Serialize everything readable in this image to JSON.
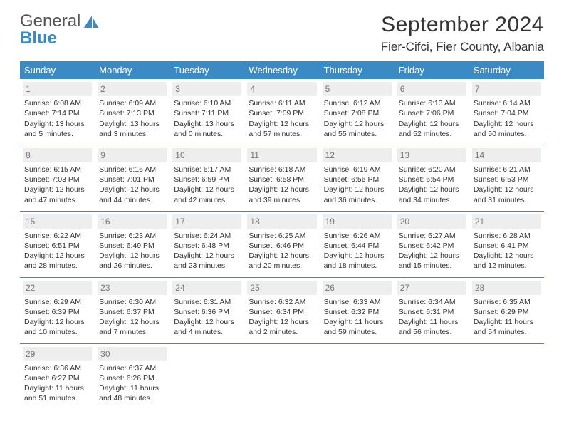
{
  "logo": {
    "word1": "General",
    "word2": "Blue"
  },
  "title": "September 2024",
  "location": "Fier-Cifci, Fier County, Albania",
  "day_names": [
    "Sunday",
    "Monday",
    "Tuesday",
    "Wednesday",
    "Thursday",
    "Friday",
    "Saturday"
  ],
  "header_bg": "#3b8ac4",
  "weeks": [
    [
      {
        "n": "1",
        "sr": "6:08 AM",
        "ss": "7:14 PM",
        "dl": "13 hours and 5 minutes."
      },
      {
        "n": "2",
        "sr": "6:09 AM",
        "ss": "7:13 PM",
        "dl": "13 hours and 3 minutes."
      },
      {
        "n": "3",
        "sr": "6:10 AM",
        "ss": "7:11 PM",
        "dl": "13 hours and 0 minutes."
      },
      {
        "n": "4",
        "sr": "6:11 AM",
        "ss": "7:09 PM",
        "dl": "12 hours and 57 minutes."
      },
      {
        "n": "5",
        "sr": "6:12 AM",
        "ss": "7:08 PM",
        "dl": "12 hours and 55 minutes."
      },
      {
        "n": "6",
        "sr": "6:13 AM",
        "ss": "7:06 PM",
        "dl": "12 hours and 52 minutes."
      },
      {
        "n": "7",
        "sr": "6:14 AM",
        "ss": "7:04 PM",
        "dl": "12 hours and 50 minutes."
      }
    ],
    [
      {
        "n": "8",
        "sr": "6:15 AM",
        "ss": "7:03 PM",
        "dl": "12 hours and 47 minutes."
      },
      {
        "n": "9",
        "sr": "6:16 AM",
        "ss": "7:01 PM",
        "dl": "12 hours and 44 minutes."
      },
      {
        "n": "10",
        "sr": "6:17 AM",
        "ss": "6:59 PM",
        "dl": "12 hours and 42 minutes."
      },
      {
        "n": "11",
        "sr": "6:18 AM",
        "ss": "6:58 PM",
        "dl": "12 hours and 39 minutes."
      },
      {
        "n": "12",
        "sr": "6:19 AM",
        "ss": "6:56 PM",
        "dl": "12 hours and 36 minutes."
      },
      {
        "n": "13",
        "sr": "6:20 AM",
        "ss": "6:54 PM",
        "dl": "12 hours and 34 minutes."
      },
      {
        "n": "14",
        "sr": "6:21 AM",
        "ss": "6:53 PM",
        "dl": "12 hours and 31 minutes."
      }
    ],
    [
      {
        "n": "15",
        "sr": "6:22 AM",
        "ss": "6:51 PM",
        "dl": "12 hours and 28 minutes."
      },
      {
        "n": "16",
        "sr": "6:23 AM",
        "ss": "6:49 PM",
        "dl": "12 hours and 26 minutes."
      },
      {
        "n": "17",
        "sr": "6:24 AM",
        "ss": "6:48 PM",
        "dl": "12 hours and 23 minutes."
      },
      {
        "n": "18",
        "sr": "6:25 AM",
        "ss": "6:46 PM",
        "dl": "12 hours and 20 minutes."
      },
      {
        "n": "19",
        "sr": "6:26 AM",
        "ss": "6:44 PM",
        "dl": "12 hours and 18 minutes."
      },
      {
        "n": "20",
        "sr": "6:27 AM",
        "ss": "6:42 PM",
        "dl": "12 hours and 15 minutes."
      },
      {
        "n": "21",
        "sr": "6:28 AM",
        "ss": "6:41 PM",
        "dl": "12 hours and 12 minutes."
      }
    ],
    [
      {
        "n": "22",
        "sr": "6:29 AM",
        "ss": "6:39 PM",
        "dl": "12 hours and 10 minutes."
      },
      {
        "n": "23",
        "sr": "6:30 AM",
        "ss": "6:37 PM",
        "dl": "12 hours and 7 minutes."
      },
      {
        "n": "24",
        "sr": "6:31 AM",
        "ss": "6:36 PM",
        "dl": "12 hours and 4 minutes."
      },
      {
        "n": "25",
        "sr": "6:32 AM",
        "ss": "6:34 PM",
        "dl": "12 hours and 2 minutes."
      },
      {
        "n": "26",
        "sr": "6:33 AM",
        "ss": "6:32 PM",
        "dl": "11 hours and 59 minutes."
      },
      {
        "n": "27",
        "sr": "6:34 AM",
        "ss": "6:31 PM",
        "dl": "11 hours and 56 minutes."
      },
      {
        "n": "28",
        "sr": "6:35 AM",
        "ss": "6:29 PM",
        "dl": "11 hours and 54 minutes."
      }
    ],
    [
      {
        "n": "29",
        "sr": "6:36 AM",
        "ss": "6:27 PM",
        "dl": "11 hours and 51 minutes."
      },
      {
        "n": "30",
        "sr": "6:37 AM",
        "ss": "6:26 PM",
        "dl": "11 hours and 48 minutes."
      },
      null,
      null,
      null,
      null,
      null
    ]
  ],
  "labels": {
    "sunrise": "Sunrise: ",
    "sunset": "Sunset: ",
    "daylight": "Daylight: "
  }
}
